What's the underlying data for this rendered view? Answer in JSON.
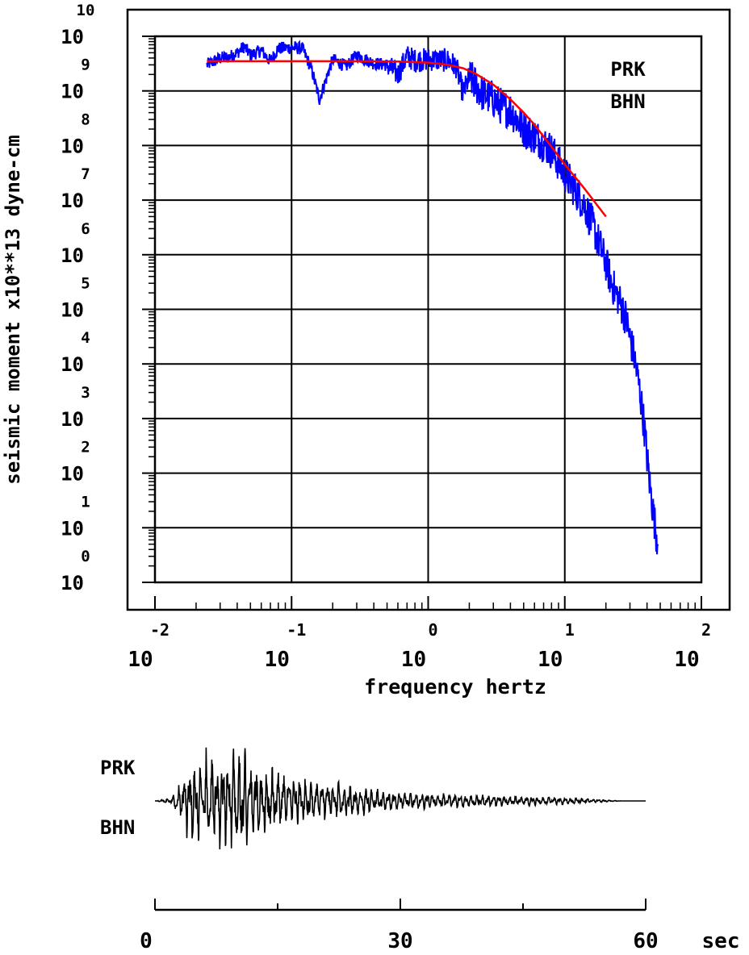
{
  "chart_data": [
    {
      "type": "line",
      "xscale": "log",
      "yscale": "log",
      "xlabel": "frequency hertz",
      "ylabel": "seismic moment x10**13 dyne-cm",
      "xlim": [
        0.01,
        100
      ],
      "ylim": [
        1,
        10000000000
      ],
      "grid": true,
      "x_ticks": [
        {
          "base": "10",
          "exp": "-2"
        },
        {
          "base": "10",
          "exp": "-1"
        },
        {
          "base": "10",
          "exp": "0"
        },
        {
          "base": "10",
          "exp": "1"
        },
        {
          "base": "10",
          "exp": "2"
        }
      ],
      "y_ticks": [
        {
          "base": "10",
          "exp": "0"
        },
        {
          "base": "10",
          "exp": "1"
        },
        {
          "base": "10",
          "exp": "2"
        },
        {
          "base": "10",
          "exp": "3"
        },
        {
          "base": "10",
          "exp": "4"
        },
        {
          "base": "10",
          "exp": "5"
        },
        {
          "base": "10",
          "exp": "6"
        },
        {
          "base": "10",
          "exp": "7"
        },
        {
          "base": "10",
          "exp": "8"
        },
        {
          "base": "10",
          "exp": "9"
        },
        {
          "base": "10",
          "exp": "10"
        }
      ],
      "annotations": [
        "PRK",
        "BHN"
      ],
      "series": [
        {
          "color": "#0000ff",
          "x": [
            0.024,
            0.03,
            0.035,
            0.04,
            0.045,
            0.05,
            0.06,
            0.07,
            0.08,
            0.1,
            0.12,
            0.14,
            0.16,
            0.2,
            0.25,
            0.3,
            0.4,
            0.5,
            0.6,
            0.7,
            0.8,
            1.0,
            1.2,
            1.4,
            1.6,
            1.8,
            2.0,
            2.5,
            3.0,
            3.5,
            4.0,
            5.0,
            6.0,
            7.0,
            8.0,
            10.0,
            12.0,
            14.0,
            16.0,
            18.0,
            20.0,
            22.0,
            25.0,
            28.0,
            30.0,
            32.0,
            35.0,
            38.0,
            40.0,
            42.0,
            45.0,
            48.0
          ],
          "y": [
            3000000000,
            4000000000,
            4200000000,
            5000000000,
            6500000000,
            4500000000,
            5500000000,
            3500000000,
            6000000000,
            6200000000,
            6000000000,
            2500000000,
            700000000,
            3800000000,
            2800000000,
            4500000000,
            3200000000,
            3000000000,
            2000000000,
            4300000000,
            3600000000,
            3800000000,
            3700000000,
            3600000000,
            2800000000,
            900000000,
            1800000000,
            900000000,
            700000000,
            500000000,
            450000000,
            200000000,
            150000000,
            110000000,
            80000000,
            30000000,
            15000000,
            8000000,
            3500000,
            1500000,
            700000,
            300000,
            150000,
            70000,
            30000,
            15000,
            4000,
            800,
            200,
            60,
            15,
            5
          ]
        },
        {
          "color": "#ff0000",
          "x": [
            0.024,
            0.05,
            0.1,
            0.3,
            0.6,
            1.0,
            1.4,
            1.8,
            2.2,
            3.0,
            4.0,
            5.0,
            6.0,
            8.0,
            10.0,
            14.0,
            20.0
          ],
          "y": [
            3500000000,
            3500000000,
            3500000000,
            3500000000,
            3450000000,
            3300000000,
            3000000000,
            2600000000,
            2100000000,
            1300000000,
            700000000,
            400000000,
            240000000,
            95000000,
            45000000,
            16000000,
            5000000
          ]
        }
      ]
    },
    {
      "type": "line",
      "xlim": [
        0,
        60
      ],
      "x_ticks": [
        "0",
        "30",
        "60"
      ],
      "x_unit": "sec",
      "annotations": [
        "PRK",
        "BHN"
      ],
      "series": [
        {
          "color": "#000000",
          "envelope_time": [
            0,
            2,
            3,
            4,
            5,
            6,
            8,
            11,
            12,
            14,
            16,
            20,
            25,
            30,
            35,
            40,
            45,
            50,
            55,
            57,
            60
          ],
          "envelope_amplitude": [
            0,
            0.05,
            0.3,
            0.6,
            0.7,
            0.8,
            0.75,
            0.9,
            0.65,
            0.55,
            0.45,
            0.35,
            0.25,
            0.15,
            0.12,
            0.1,
            0.08,
            0.06,
            0.02,
            0,
            0
          ]
        }
      ]
    }
  ]
}
